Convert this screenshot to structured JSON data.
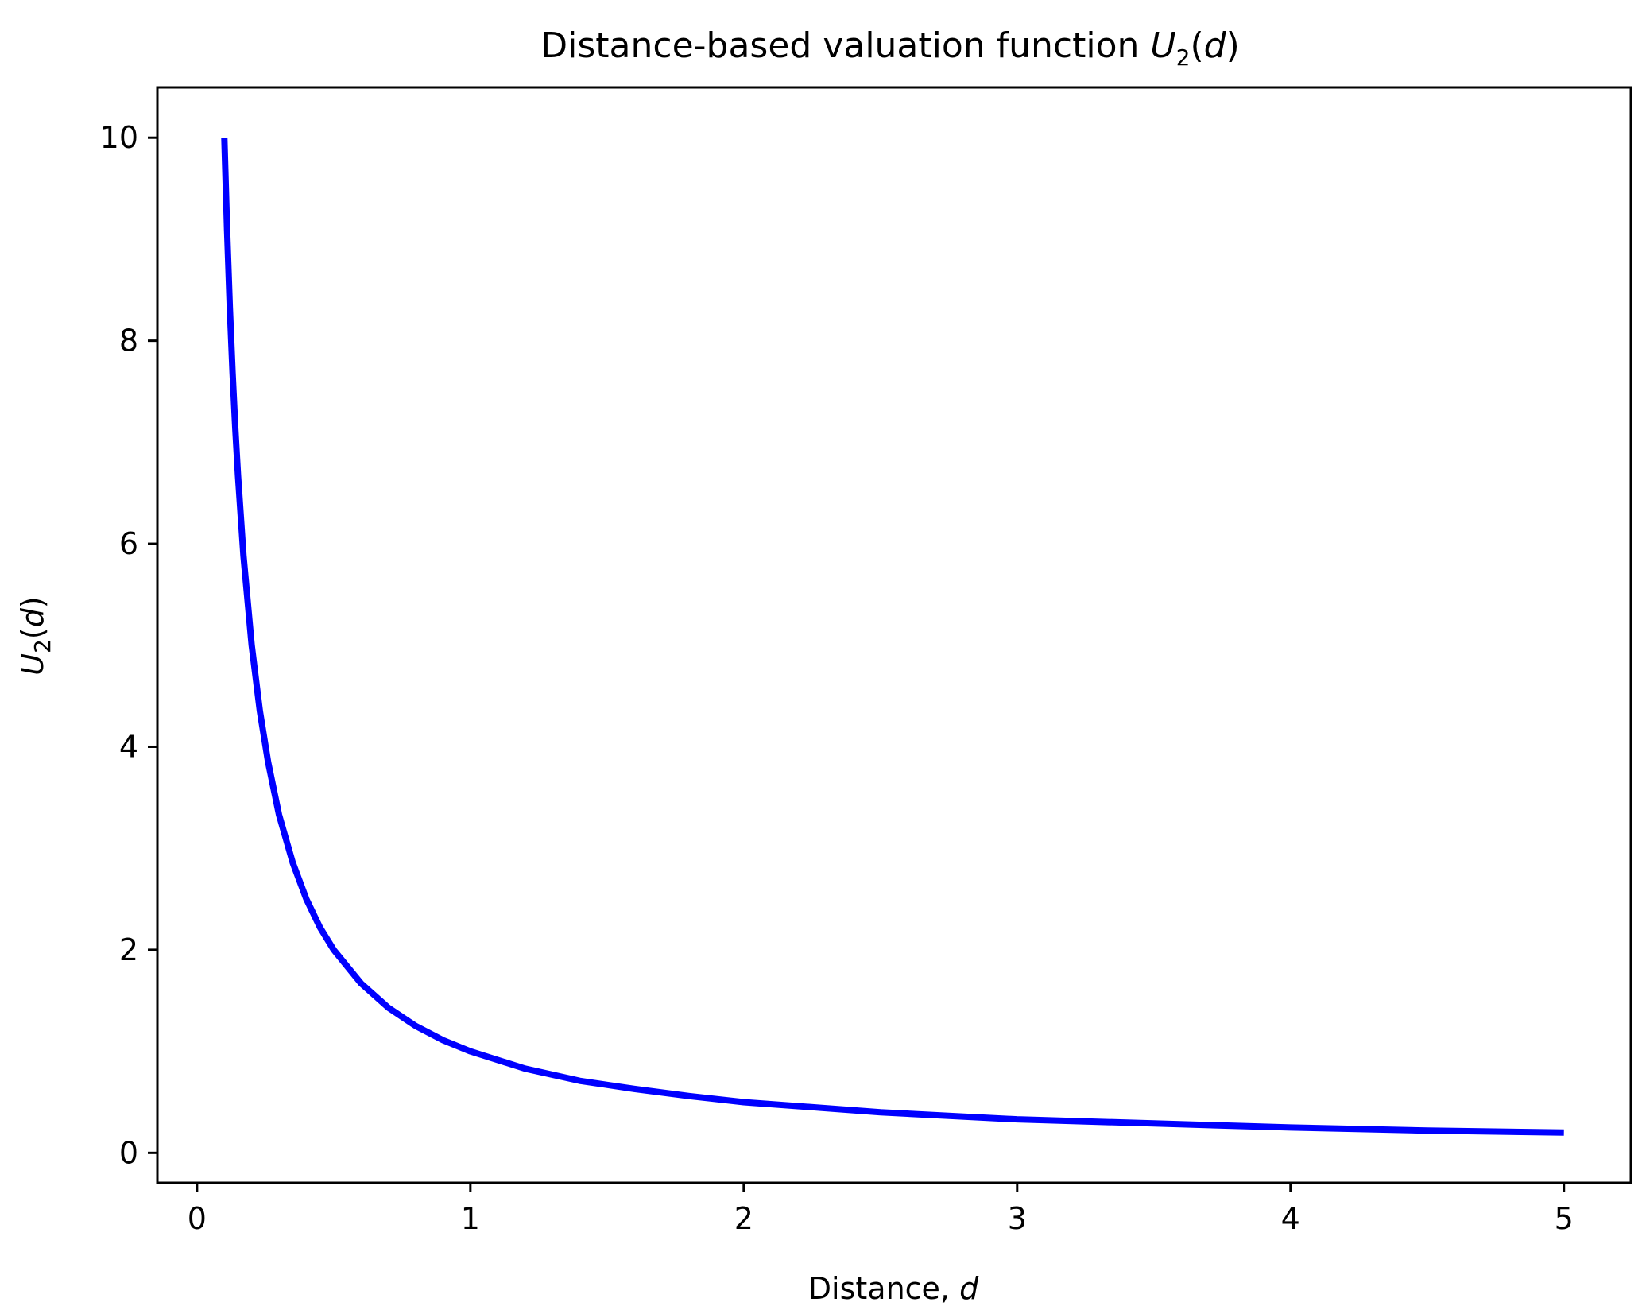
{
  "chart_data": {
    "type": "line",
    "title": {
      "text": "Distance-based valuation function ",
      "math_var": "U",
      "math_sub": "2",
      "math_arg_open": "(",
      "math_arg": "d",
      "math_arg_close": ")"
    },
    "xlabel": {
      "text": "Distance, ",
      "math_var": "d"
    },
    "ylabel": {
      "math_var": "U",
      "math_sub": "2",
      "math_arg_open": "(",
      "math_arg": "d",
      "math_arg_close": ")"
    },
    "xlim": [
      -0.145,
      5.245
    ],
    "ylim": [
      -0.295,
      10.495
    ],
    "xticks": [
      0,
      1,
      2,
      3,
      4,
      5
    ],
    "xtick_labels": [
      "0",
      "1",
      "2",
      "3",
      "4",
      "5"
    ],
    "yticks": [
      0,
      2,
      4,
      6,
      8,
      10
    ],
    "ytick_labels": [
      "0",
      "2",
      "4",
      "6",
      "8",
      "10"
    ],
    "grid": false,
    "series": [
      {
        "color": "#0000ff",
        "x": [
          0.1,
          0.11,
          0.12,
          0.13,
          0.14,
          0.15,
          0.17,
          0.2,
          0.23,
          0.26,
          0.3,
          0.35,
          0.4,
          0.45,
          0.5,
          0.6,
          0.7,
          0.8,
          0.9,
          1.0,
          1.2,
          1.4,
          1.6,
          1.8,
          2.0,
          2.5,
          3.0,
          3.5,
          4.0,
          4.5,
          5.0
        ],
        "y": [
          10.0,
          9.09,
          8.33,
          7.69,
          7.14,
          6.67,
          5.88,
          5.0,
          4.35,
          3.85,
          3.33,
          2.86,
          2.5,
          2.22,
          2.0,
          1.67,
          1.43,
          1.25,
          1.11,
          1.0,
          0.83,
          0.71,
          0.63,
          0.56,
          0.5,
          0.4,
          0.33,
          0.29,
          0.25,
          0.22,
          0.2
        ]
      }
    ]
  }
}
